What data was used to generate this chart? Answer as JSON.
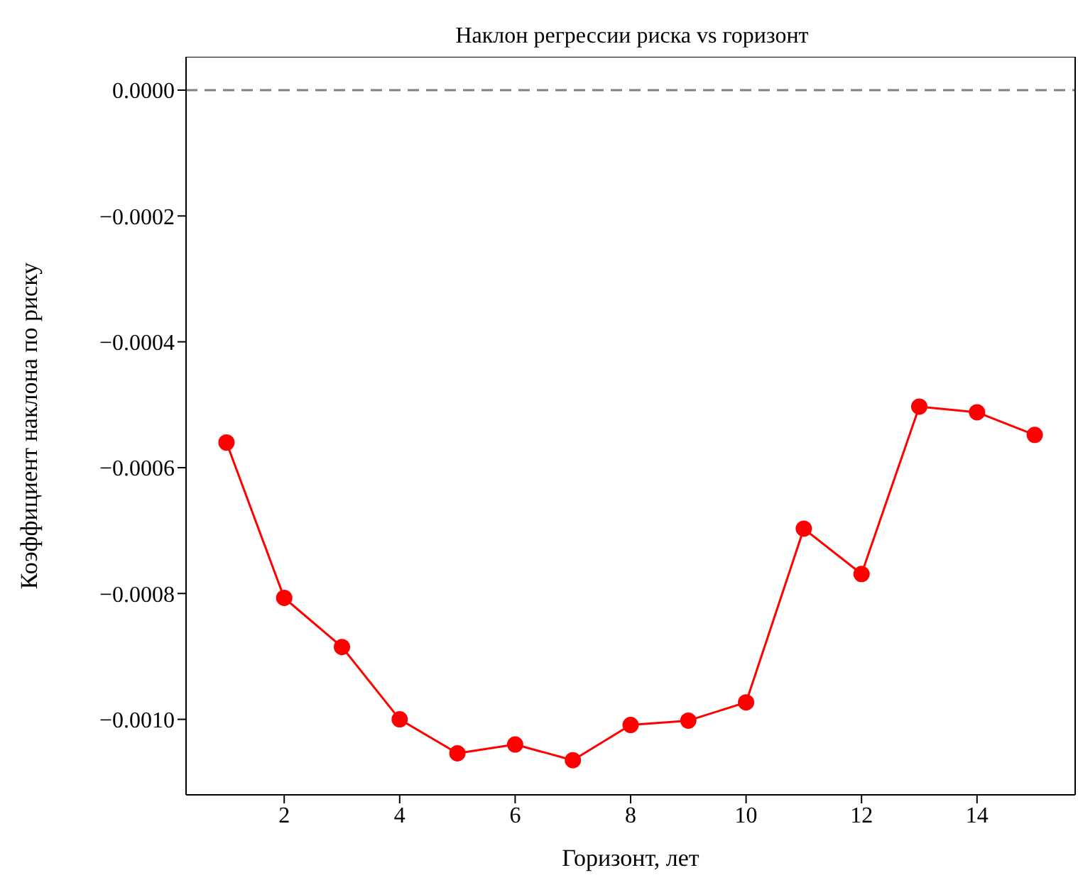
{
  "chart_data": {
    "type": "line",
    "title": "Наклон регрессии риска vs горизонт",
    "xlabel": "Горизонт, лет",
    "ylabel": "Коэффициент наклона по риску",
    "x": [
      1,
      2,
      3,
      4,
      5,
      6,
      7,
      8,
      9,
      10,
      11,
      12,
      13,
      14,
      15
    ],
    "series": [
      {
        "color": "#ff0000",
        "values": [
          -0.00056,
          -0.000807,
          -0.000885,
          -0.001,
          -0.001054,
          -0.00104,
          -0.001065,
          -0.001009,
          -0.001002,
          -0.000973,
          -0.000697,
          -0.000769,
          -0.000503,
          -0.000512,
          -0.000548
        ]
      }
    ],
    "xlim": [
      0.3,
      15.7
    ],
    "xticks": [
      2,
      4,
      6,
      8,
      10,
      12,
      14
    ],
    "ylim": [
      -0.00112,
      5.3e-05
    ],
    "yticks": [
      {
        "value": 0,
        "label": "0.0000"
      },
      {
        "value": -0.0002,
        "label": "−0.0002"
      },
      {
        "value": -0.0004,
        "label": "−0.0004"
      },
      {
        "value": -0.0006,
        "label": "−0.0006"
      },
      {
        "value": -0.0008,
        "label": "−0.0008"
      },
      {
        "value": -0.001,
        "label": "−0.0010"
      }
    ],
    "ref_lines": [
      {
        "axis": "y",
        "value": 0,
        "color": "#808080",
        "line_style": "dashed"
      }
    ],
    "marker": "circle",
    "line_style": "solid",
    "grid": false,
    "legend": false
  }
}
